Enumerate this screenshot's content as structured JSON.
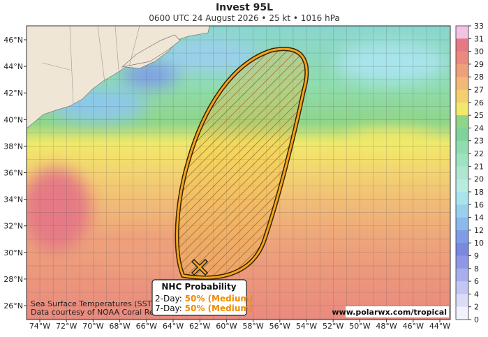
{
  "header": {
    "title": "Invest 95L",
    "subtitle": "0600 UTC 24 August 2026 • 25 kt • 1016 hPa"
  },
  "map": {
    "lon_labels": [
      "74°W",
      "72°W",
      "70°W",
      "68°W",
      "66°W",
      "64°W",
      "62°W",
      "60°W",
      "58°W",
      "56°W",
      "54°W",
      "52°W",
      "50°W",
      "48°W",
      "46°W",
      "44°W"
    ],
    "lat_labels": [
      "46°N",
      "44°N",
      "42°N",
      "40°N",
      "38°N",
      "36°N",
      "34°N",
      "32°N",
      "30°N",
      "28°N",
      "26°N"
    ]
  },
  "colorbar": {
    "ticks": [
      "33",
      "31",
      "30",
      "29",
      "28",
      "27",
      "26",
      "25",
      "24",
      "23",
      "22",
      "21",
      "20",
      "18",
      "16",
      "14",
      "12",
      "10",
      "9",
      "8",
      "6",
      "4",
      "2",
      "0"
    ]
  },
  "legend": {
    "title": "NHC Probability",
    "rows": [
      {
        "label": "2-Day:",
        "value": "50% (Medium)"
      },
      {
        "label": "7-Day:",
        "value": "50% (Medium)"
      }
    ]
  },
  "credits": {
    "lines": [
      "Sea Surface Temperatures (SST) in",
      "Data courtesy of NOAA Coral Reef"
    ],
    "url": "www.polarwx.com/tropical"
  }
}
